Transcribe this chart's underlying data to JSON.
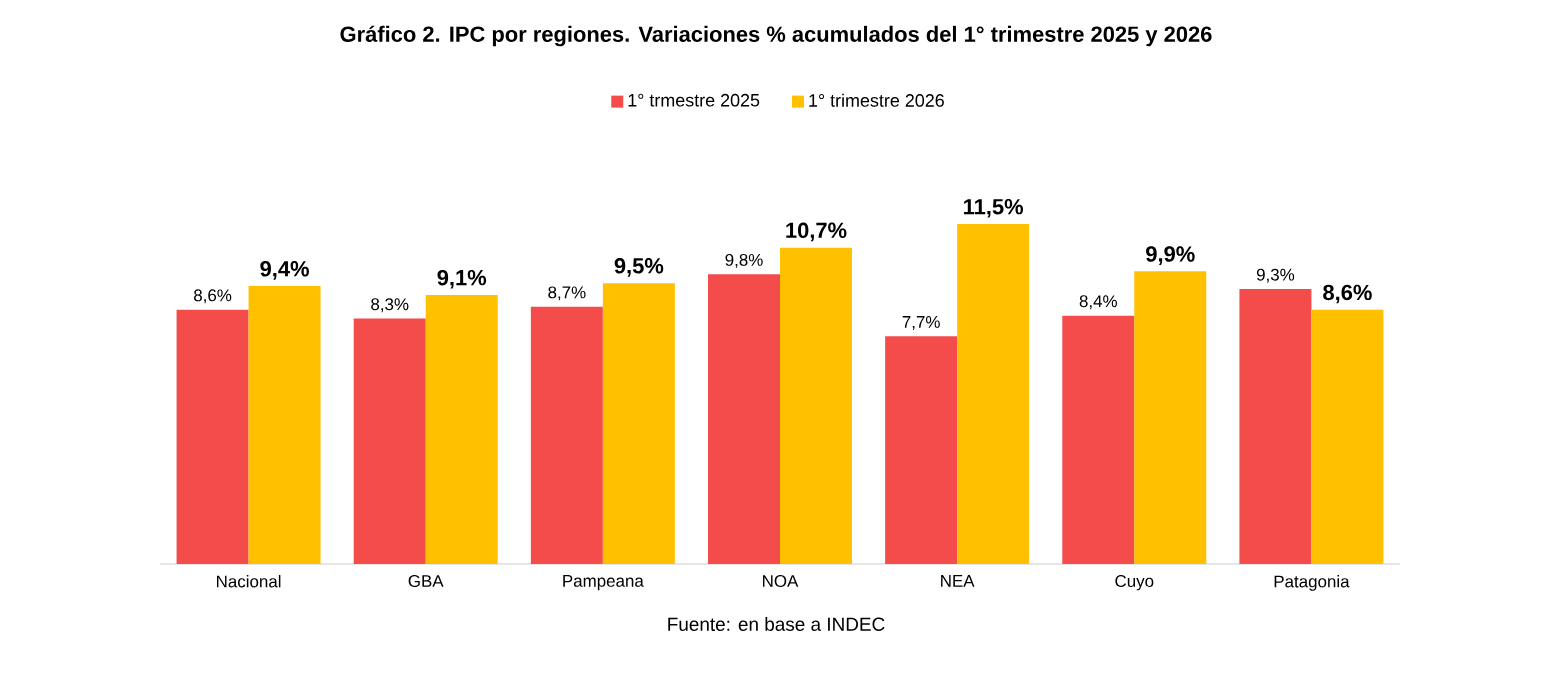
{
  "chart_data": {
    "type": "bar",
    "title": "Gráfico 2. IPC por regiones. Variaciones % acumulados del 1° trimestre 2025 y 2026",
    "categories": [
      "Nacional",
      "GBA",
      "Pampeana",
      "NOA",
      "NEA",
      "Cuyo",
      "Patagonia"
    ],
    "series": [
      {
        "name": "1° trmestre 2025",
        "color": "#f44b4b",
        "values": [
          8.6,
          8.3,
          8.7,
          9.8,
          7.7,
          8.4,
          9.3
        ],
        "value_labels": [
          "8,6%",
          "8,3%",
          "8,7%",
          "9,8%",
          "7,7%",
          "8,4%",
          "9,3%"
        ]
      },
      {
        "name": "1° trimestre 2026",
        "color": "#ffc000",
        "values": [
          9.4,
          9.1,
          9.5,
          10.7,
          11.5,
          9.9,
          8.6
        ],
        "value_labels": [
          "9,4%",
          "9,1%",
          "9,5%",
          "10,7%",
          "11,5%",
          "9,9%",
          "8,6%"
        ]
      }
    ],
    "legend": "top",
    "annotations": [
      "Fuente: en base a INDEC"
    ]
  }
}
